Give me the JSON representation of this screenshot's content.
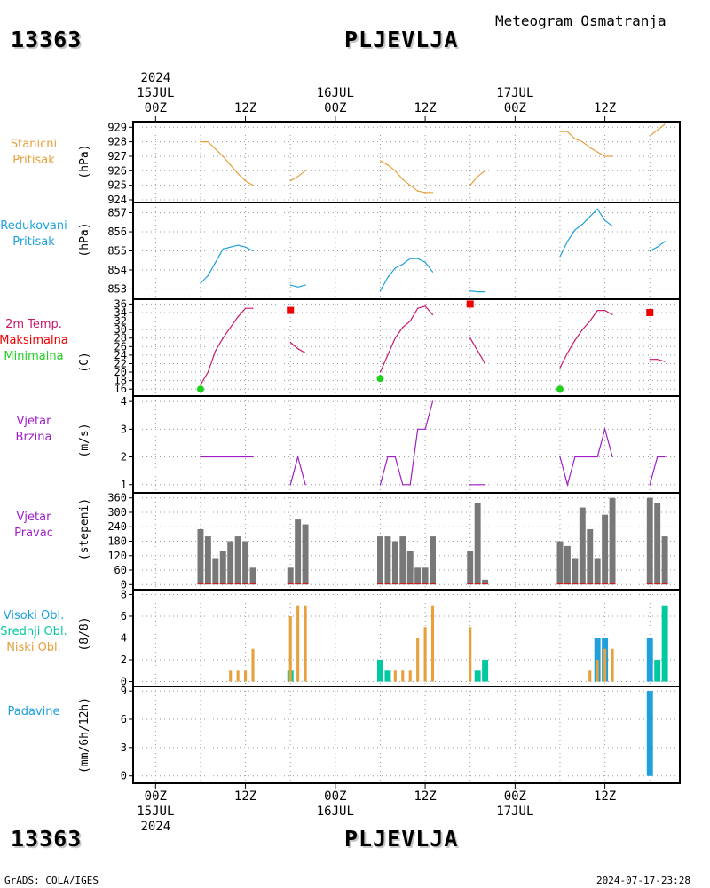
{
  "header": {
    "station_id": "13363",
    "station_name": "PLJEVLJA",
    "product": "Meteogram Osmatranja"
  },
  "footer": {
    "credit": "GrADS: COLA/IGES",
    "timestamp": "2024-07-17-23:28"
  },
  "time_axis": {
    "top_ticks": [
      {
        "line1": "2024",
        "line2": "15JUL",
        "line3": "00Z",
        "hour": 0
      },
      {
        "line1": "",
        "line2": "",
        "line3": "12Z",
        "hour": 12
      },
      {
        "line1": "",
        "line2": "16JUL",
        "line3": "00Z",
        "hour": 24
      },
      {
        "line1": "",
        "line2": "",
        "line3": "12Z",
        "hour": 36
      },
      {
        "line1": "",
        "line2": "17JUL",
        "line3": "00Z",
        "hour": 48
      },
      {
        "line1": "",
        "line2": "",
        "line3": "12Z",
        "hour": 60
      }
    ],
    "bottom_ticks": [
      {
        "line1": "00Z",
        "line2": "15JUL",
        "line3": "2024",
        "hour": 0
      },
      {
        "line1": "12Z",
        "line2": "",
        "line3": "",
        "hour": 12
      },
      {
        "line1": "00Z",
        "line2": "16JUL",
        "line3": "",
        "hour": 24
      },
      {
        "line1": "12Z",
        "line2": "",
        "line3": "",
        "hour": 36
      },
      {
        "line1": "00Z",
        "line2": "17JUL",
        "line3": "",
        "hour": 48
      },
      {
        "line1": "12Z",
        "line2": "",
        "line3": "",
        "hour": 60
      }
    ],
    "x_range_hours": [
      -3,
      70
    ]
  },
  "panels": [
    {
      "id": "pressure",
      "labels": [
        {
          "text": "Stanicni",
          "color": "#e6a03c"
        },
        {
          "text": "Pritisak",
          "color": "#e6a03c"
        }
      ],
      "unit": "(hPa)"
    },
    {
      "id": "redpressure",
      "labels": [
        {
          "text": "Redukovani",
          "color": "#1ea0dc"
        },
        {
          "text": "Pritisak",
          "color": "#1ea0dc"
        }
      ],
      "unit": "(hPa)"
    },
    {
      "id": "temp",
      "labels": [
        {
          "text": "2m Temp.",
          "color": "#c8196e"
        },
        {
          "text": "Maksimalna",
          "color": "#f00000"
        },
        {
          "text": "Minimalna",
          "color": "#1ed21e"
        }
      ],
      "unit": "(C)"
    },
    {
      "id": "wspeed",
      "labels": [
        {
          "text": "Vjetar",
          "color": "#a01ec8"
        },
        {
          "text": "Brzina",
          "color": "#a01ec8"
        }
      ],
      "unit": "(m/s)"
    },
    {
      "id": "wdir",
      "labels": [
        {
          "text": "Vjetar",
          "color": "#a01ec8"
        },
        {
          "text": "Pravac",
          "color": "#a01ec8"
        }
      ],
      "unit": "(stepeni)"
    },
    {
      "id": "clouds",
      "labels": [
        {
          "text": "Visoki Obl.",
          "color": "#1ea0dc"
        },
        {
          "text": "Srednji Obl.",
          "color": "#00c8a0"
        },
        {
          "text": "Niski Obl.",
          "color": "#e6a03c"
        }
      ],
      "unit": "(8/8)"
    },
    {
      "id": "precip",
      "labels": [
        {
          "text": "Padavine",
          "color": "#1ea0dc"
        }
      ],
      "unit": "(mm/6h/12h)"
    }
  ],
  "chart_data": [
    {
      "type": "line",
      "title": "Stanicni Pritisak",
      "ylabel": "(hPa)",
      "ylim": [
        924,
        929.2
      ],
      "yticks": [
        924,
        925,
        926,
        927,
        928,
        929
      ],
      "color": "#e6a03c",
      "segments": [
        {
          "x": [
            6,
            7,
            8,
            9,
            10,
            11,
            12,
            13
          ],
          "y": [
            928,
            928,
            927.5,
            927,
            926.4,
            925.8,
            925.3,
            925
          ]
        },
        {
          "x": [
            18,
            19,
            20
          ],
          "y": [
            925.3,
            925.6,
            926
          ]
        },
        {
          "x": [
            30,
            31,
            32,
            33,
            34,
            35,
            36,
            37
          ],
          "y": [
            926.7,
            926.4,
            926,
            925.4,
            925,
            924.6,
            924.5,
            924.5
          ]
        },
        {
          "x": [
            42,
            43,
            44
          ],
          "y": [
            925,
            925.6,
            926
          ]
        },
        {
          "x": [
            54,
            55,
            56,
            57,
            58,
            59,
            60,
            61
          ],
          "y": [
            928.7,
            928.7,
            928.2,
            928,
            927.6,
            927.3,
            927,
            927
          ]
        },
        {
          "x": [
            66,
            67,
            68
          ],
          "y": [
            928.4,
            928.8,
            929.2
          ]
        }
      ]
    },
    {
      "type": "line",
      "title": "Redukovani Pritisak",
      "ylabel": "(hPa)",
      "ylim": [
        852.6,
        857.4
      ],
      "yticks": [
        853,
        854,
        855,
        856,
        857
      ],
      "color": "#1ea0dc",
      "segments": [
        {
          "x": [
            6,
            7,
            8,
            9,
            10,
            11,
            12,
            13
          ],
          "y": [
            853.3,
            853.7,
            854.4,
            855.1,
            855.2,
            855.3,
            855.2,
            855
          ]
        },
        {
          "x": [
            18,
            19,
            20
          ],
          "y": [
            853.2,
            853.1,
            853.2
          ]
        },
        {
          "x": [
            30,
            31,
            32,
            33,
            34,
            35,
            36,
            37
          ],
          "y": [
            852.9,
            853.6,
            854.1,
            854.3,
            854.6,
            854.6,
            854.4,
            853.9
          ]
        },
        {
          "x": [
            42,
            43,
            44
          ],
          "y": [
            852.9,
            852.85,
            852.85
          ]
        },
        {
          "x": [
            54,
            55,
            56,
            57,
            58,
            59,
            60,
            61
          ],
          "y": [
            854.7,
            855.5,
            856.1,
            856.4,
            856.8,
            857.2,
            856.6,
            856.3
          ]
        },
        {
          "x": [
            66,
            67,
            68
          ],
          "y": [
            855,
            855.2,
            855.5
          ]
        }
      ]
    },
    {
      "type": "line",
      "title": "2m Temp. Maksimalna Minimalna",
      "ylabel": "(C)",
      "ylim": [
        15,
        36.5
      ],
      "yticks": [
        16,
        18,
        20,
        22,
        24,
        26,
        28,
        30,
        32,
        34,
        36
      ],
      "color": "#c8196e",
      "segments": [
        {
          "x": [
            6,
            7,
            8,
            9,
            10,
            11,
            12,
            13
          ],
          "y": [
            17,
            20,
            25,
            28,
            30.5,
            33,
            35,
            35
          ]
        },
        {
          "x": [
            18,
            19,
            20
          ],
          "y": [
            27,
            25.5,
            24.5
          ]
        },
        {
          "x": [
            30,
            31,
            32,
            33,
            34,
            35,
            36,
            37
          ],
          "y": [
            20,
            24,
            28,
            30.5,
            32,
            35,
            35.5,
            33.5
          ]
        },
        {
          "x": [
            42,
            43,
            44
          ],
          "y": [
            28,
            25,
            22
          ]
        },
        {
          "x": [
            54,
            55,
            56,
            57,
            58,
            59,
            60,
            61
          ],
          "y": [
            21,
            24.5,
            27.5,
            30,
            32,
            34.5,
            34.5,
            33.5
          ]
        },
        {
          "x": [
            66,
            67,
            68
          ],
          "y": [
            23,
            23,
            22.5
          ]
        }
      ],
      "max_points": [
        {
          "x": 18,
          "y": 34.5
        },
        {
          "x": 42,
          "y": 36
        },
        {
          "x": 66,
          "y": 34
        }
      ],
      "min_points": [
        {
          "x": 6,
          "y": 16
        },
        {
          "x": 30,
          "y": 18.5
        },
        {
          "x": 54,
          "y": 16
        }
      ],
      "max_color": "#f00000",
      "min_color": "#1ed21e"
    },
    {
      "type": "line",
      "title": "Vjetar Brzina",
      "ylabel": "(m/s)",
      "ylim": [
        0.8,
        4.1
      ],
      "yticks": [
        1,
        2,
        3,
        4
      ],
      "color": "#a01ec8",
      "segments": [
        {
          "x": [
            6,
            7,
            8,
            9,
            10,
            11,
            12,
            13
          ],
          "y": [
            2,
            2,
            2,
            2,
            2,
            2,
            2,
            2
          ]
        },
        {
          "x": [
            18,
            19,
            20
          ],
          "y": [
            1,
            2,
            1
          ]
        },
        {
          "x": [
            30,
            31,
            32,
            33,
            34,
            35,
            36,
            37
          ],
          "y": [
            1,
            2,
            2,
            1,
            1,
            3,
            3,
            4
          ]
        },
        {
          "x": [
            42,
            43,
            44
          ],
          "y": [
            1,
            1,
            1
          ]
        },
        {
          "x": [
            54,
            55,
            56,
            57,
            58,
            59,
            60,
            61
          ],
          "y": [
            2,
            1,
            2,
            2,
            2,
            2,
            3,
            2
          ]
        },
        {
          "x": [
            66,
            67,
            68
          ],
          "y": [
            1,
            2,
            2
          ]
        }
      ]
    },
    {
      "type": "bar",
      "title": "Vjetar Pravac",
      "ylabel": "(stepeni)",
      "ylim": [
        -10,
        370
      ],
      "yticks": [
        0,
        60,
        120,
        180,
        240,
        300,
        360
      ],
      "color": "#787878",
      "baseline_color": "#f00000",
      "x": [
        6,
        7,
        8,
        9,
        10,
        11,
        12,
        13,
        18,
        19,
        20,
        30,
        31,
        32,
        33,
        34,
        35,
        36,
        37,
        42,
        43,
        44,
        54,
        55,
        56,
        57,
        58,
        59,
        60,
        61,
        66,
        67,
        68
      ],
      "values": [
        230,
        200,
        110,
        140,
        180,
        200,
        180,
        70,
        70,
        270,
        250,
        200,
        200,
        180,
        200,
        140,
        70,
        70,
        200,
        140,
        340,
        20,
        180,
        160,
        110,
        320,
        230,
        110,
        290,
        360,
        360,
        340,
        200
      ]
    },
    {
      "type": "bar",
      "title": "Visoki Obl. Srednji Obl. Niski Obl.",
      "ylabel": "(8/8)",
      "ylim": [
        -0.2,
        8.2
      ],
      "yticks": [
        0,
        2,
        4,
        6,
        8
      ],
      "series": [
        {
          "name": "Visoki Obl.",
          "color": "#1ea0dc",
          "x": [
            59,
            60,
            66
          ],
          "values": [
            4,
            4,
            4
          ]
        },
        {
          "name": "Srednji Obl.",
          "color": "#00c8a0",
          "x": [
            18,
            30,
            31,
            43,
            44,
            67,
            68
          ],
          "values": [
            1,
            2,
            1,
            1,
            2,
            2,
            7
          ]
        },
        {
          "name": "Niski Obl.",
          "color": "#e6a03c",
          "x": [
            10,
            11,
            12,
            13,
            18,
            19,
            20,
            32,
            33,
            34,
            35,
            36,
            37,
            42,
            58,
            59,
            60,
            61
          ],
          "values": [
            1,
            1,
            1,
            3,
            6,
            7,
            7,
            1,
            1,
            1,
            4,
            5,
            7,
            5,
            1,
            2,
            3,
            3
          ]
        }
      ]
    },
    {
      "type": "bar",
      "title": "Padavine",
      "ylabel": "(mm/6h/12h)",
      "ylim": [
        -0.5,
        9.2
      ],
      "yticks": [
        0,
        3,
        6,
        9
      ],
      "color": "#1ea0dc",
      "x": [
        66
      ],
      "values": [
        9
      ]
    }
  ]
}
